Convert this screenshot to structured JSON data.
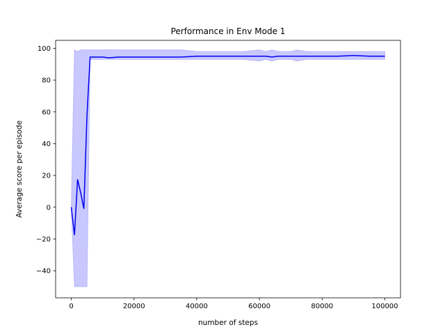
{
  "chart_data": {
    "type": "line",
    "title": "Performance in Env Mode 1",
    "xlabel": "number of steps",
    "ylabel": "Average score per episode",
    "xlim": [
      -5000,
      105000
    ],
    "ylim": [
      -57,
      105
    ],
    "xticks": [
      0,
      20000,
      40000,
      60000,
      80000,
      100000
    ],
    "yticks": [
      -40,
      -20,
      0,
      20,
      40,
      60,
      80,
      100
    ],
    "grid": false,
    "colors": {
      "line": "#0000ee",
      "band": "#c8c8ff",
      "band_edge": "#b4b4f5"
    },
    "series": [
      {
        "x": [
          0,
          1000,
          2000,
          3000,
          4000,
          5000,
          6000,
          10000,
          12000,
          15000,
          20000,
          25000,
          30000,
          35000,
          40000,
          45000,
          50000,
          55000,
          60000,
          62000,
          64000,
          66000,
          70000,
          72000,
          75000,
          80000,
          85000,
          90000,
          95000,
          100000
        ],
        "y": [
          0,
          -17.5,
          17.5,
          9,
          -1,
          58,
          94.5,
          94.5,
          94,
          94.5,
          94.5,
          94.5,
          94.5,
          94.5,
          95,
          95,
          95,
          95,
          95,
          95,
          94.5,
          95,
          95,
          95,
          95,
          95,
          95,
          95.5,
          95,
          95
        ],
        "upper": [
          0,
          99,
          98,
          99,
          99,
          99,
          99,
          99,
          99,
          99,
          99,
          99,
          99,
          99,
          98,
          98,
          98,
          98,
          99,
          98,
          99,
          98,
          98,
          99,
          98,
          98,
          98,
          98,
          98,
          98
        ],
        "lower": [
          0,
          -50,
          -50,
          -50,
          -50,
          -50,
          93,
          93,
          93,
          93,
          93,
          93,
          93,
          93,
          93,
          93,
          93,
          93,
          92,
          93,
          92,
          93,
          93,
          92,
          93,
          93,
          93,
          93,
          93,
          93
        ]
      }
    ]
  }
}
